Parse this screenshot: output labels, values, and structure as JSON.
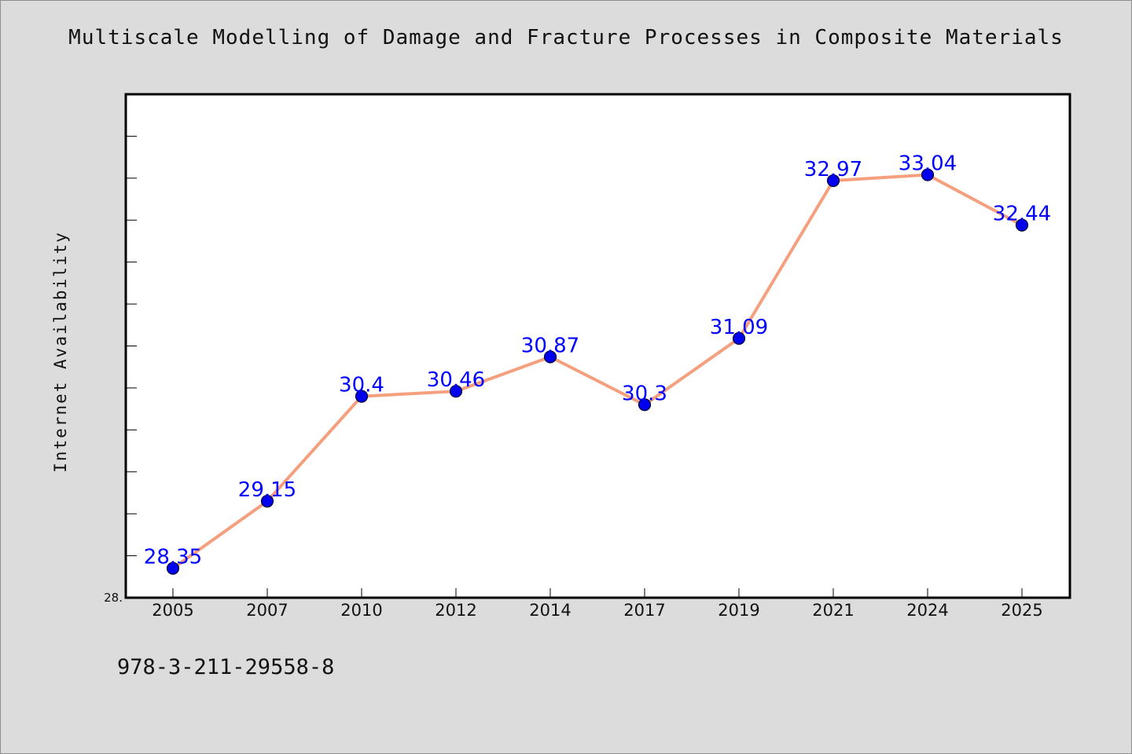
{
  "chart_data": {
    "type": "line",
    "title": "Multiscale Modelling of Damage and Fracture Processes in Composite Materials",
    "xlabel": "",
    "ylabel": "Internet Availability",
    "categories": [
      "2005",
      "2007",
      "2010",
      "2012",
      "2014",
      "2017",
      "2019",
      "2021",
      "2024",
      "2025"
    ],
    "series": [
      {
        "values": [
          28.35,
          29.15,
          30.4,
          30.46,
          30.87,
          30.3,
          31.09,
          32.97,
          33.04,
          32.44
        ],
        "data_labels": [
          "28.35",
          "29.15",
          "30.4",
          "30.46",
          "30.87",
          "30.3",
          "31.09",
          "32.97",
          "33.04",
          "32.44"
        ]
      }
    ],
    "y_tick_label": "28.",
    "ylim": [
      28.0,
      34.0
    ],
    "grid": false,
    "legend": "none",
    "colors": {
      "line": "#f4a07f",
      "marker": "#0000ee",
      "data_label": "#0000ff",
      "plot_background": "#ffffff",
      "page_background": "#dcdcdc"
    }
  },
  "footer_note": "978-3-211-29558-8"
}
